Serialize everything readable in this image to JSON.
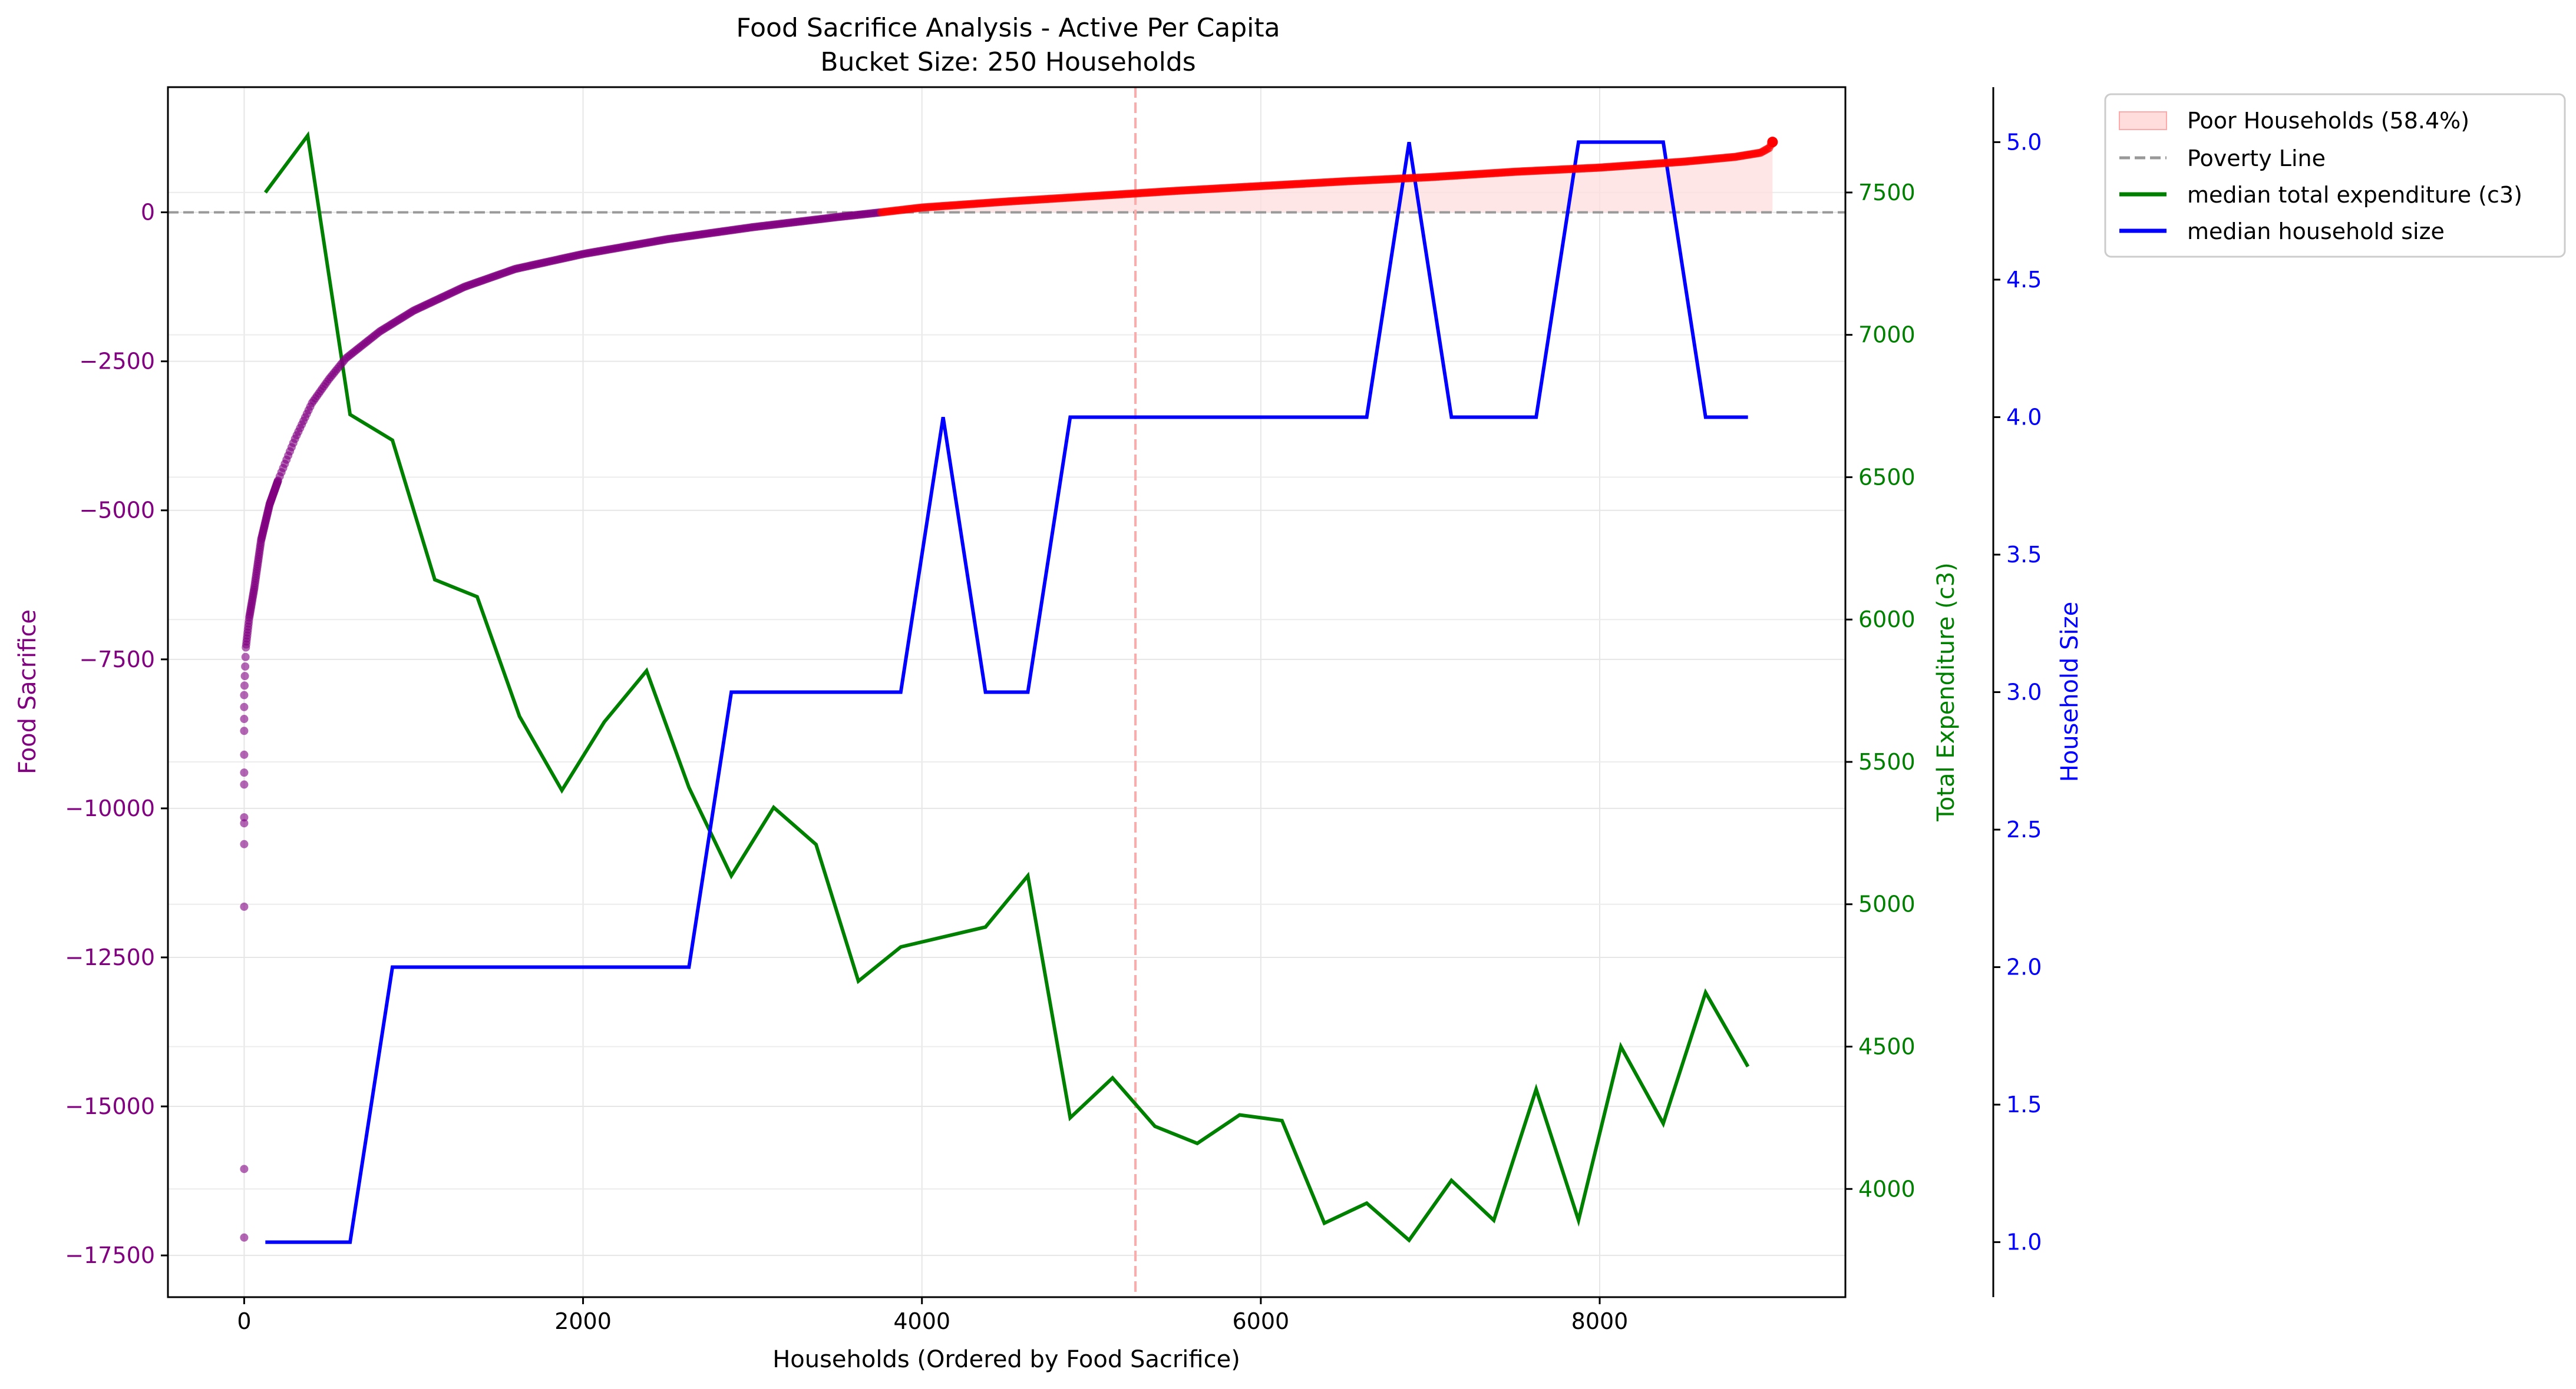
{
  "chart_data": {
    "type": "line",
    "title": "Food Sacrifice Analysis - Active Per Capita",
    "subtitle": "Bucket Size: 250 Households",
    "xlabel": "Households (Ordered by Food Sacrifice)",
    "xlim": [
      -450,
      9450
    ],
    "x_ticks": [
      0,
      2000,
      4000,
      6000,
      8000
    ],
    "x_tick_labels": [
      "0",
      "2000",
      "4000",
      "6000",
      "8000"
    ],
    "grid": true,
    "legend_position": "outside-top-right",
    "axes": {
      "left": {
        "label": "Food Sacrifice",
        "color": "#800080",
        "ylim": [
          -18200,
          2100
        ],
        "ticks": [
          0,
          -2500,
          -5000,
          -7500,
          -10000,
          -12500,
          -15000,
          -17500
        ],
        "tick_labels": [
          "0",
          "−2500",
          "−5000",
          "−7500",
          "−10000",
          "−12500",
          "−15000",
          "−17500"
        ]
      },
      "right1": {
        "label": "Total Expenditure (c3)",
        "color": "#008000",
        "ylim": [
          3620,
          7870
        ],
        "ticks": [
          4000,
          4500,
          5000,
          5500,
          6000,
          6500,
          7000,
          7500
        ],
        "tick_labels": [
          "4000",
          "4500",
          "5000",
          "5500",
          "6000",
          "6500",
          "7000",
          "7500"
        ]
      },
      "right2": {
        "label": "Household Size",
        "color": "#0000ff",
        "ylim": [
          0.8,
          5.2
        ],
        "ticks": [
          1.0,
          1.5,
          2.0,
          2.5,
          3.0,
          3.5,
          4.0,
          4.5,
          5.0
        ],
        "tick_labels": [
          "1.0",
          "1.5",
          "2.0",
          "2.5",
          "3.0",
          "3.5",
          "4.0",
          "4.5",
          "5.0"
        ]
      }
    },
    "reference_lines": {
      "poverty_line_y": 0,
      "vertical_x": 5260
    },
    "legend": [
      {
        "label": "Poor Households (58.4%)",
        "kind": "patch",
        "color": "#ffdddd",
        "edge": "#ffaaaa"
      },
      {
        "label": "Poverty Line",
        "kind": "dashed",
        "color": "#999999"
      },
      {
        "label": "median total expenditure (c3)",
        "kind": "line",
        "color": "#008000"
      },
      {
        "label": "median household size",
        "kind": "line",
        "color": "#0000ff"
      }
    ],
    "scatter_food_sacrifice": {
      "name": "Food Sacrifice",
      "color_negative": "#800080",
      "color_positive": "#ff0000",
      "isolated_points": [
        {
          "x": 0,
          "y": -17200
        },
        {
          "x": 0,
          "y": -16050
        },
        {
          "x": 0,
          "y": -11650
        },
        {
          "x": 0,
          "y": -10600
        },
        {
          "x": 0,
          "y": -10250
        },
        {
          "x": 0,
          "y": -10150
        },
        {
          "x": 0,
          "y": -9600
        },
        {
          "x": 0,
          "y": -9400
        },
        {
          "x": 0,
          "y": -9100
        },
        {
          "x": 0,
          "y": -8700
        },
        {
          "x": 0,
          "y": -8500
        },
        {
          "x": 0,
          "y": -8300
        }
      ],
      "curve": [
        {
          "x": 0,
          "y": -8100
        },
        {
          "x": 10,
          "y": -7300
        },
        {
          "x": 30,
          "y": -6800
        },
        {
          "x": 60,
          "y": -6300
        },
        {
          "x": 100,
          "y": -5500
        },
        {
          "x": 150,
          "y": -4900
        },
        {
          "x": 200,
          "y": -4500
        },
        {
          "x": 300,
          "y": -3800
        },
        {
          "x": 400,
          "y": -3200
        },
        {
          "x": 500,
          "y": -2800
        },
        {
          "x": 600,
          "y": -2450
        },
        {
          "x": 800,
          "y": -2000
        },
        {
          "x": 1000,
          "y": -1650
        },
        {
          "x": 1300,
          "y": -1250
        },
        {
          "x": 1600,
          "y": -950
        },
        {
          "x": 2000,
          "y": -700
        },
        {
          "x": 2500,
          "y": -450
        },
        {
          "x": 3000,
          "y": -250
        },
        {
          "x": 3500,
          "y": -80
        },
        {
          "x": 3760,
          "y": 0
        },
        {
          "x": 4000,
          "y": 80
        },
        {
          "x": 4500,
          "y": 180
        },
        {
          "x": 5000,
          "y": 270
        },
        {
          "x": 5500,
          "y": 360
        },
        {
          "x": 6000,
          "y": 440
        },
        {
          "x": 6500,
          "y": 520
        },
        {
          "x": 7000,
          "y": 590
        },
        {
          "x": 7500,
          "y": 680
        },
        {
          "x": 8000,
          "y": 750
        },
        {
          "x": 8500,
          "y": 850
        },
        {
          "x": 8800,
          "y": 930
        },
        {
          "x": 8950,
          "y": 1000
        },
        {
          "x": 9000,
          "y": 1080
        },
        {
          "x": 9020,
          "y": 1180
        }
      ]
    },
    "poor_fill_x_range": [
      3760,
      9020
    ],
    "series": [
      {
        "name": "median total expenditure (c3)",
        "axis": "right1",
        "color": "#008000",
        "x": [
          125,
          375,
          625,
          875,
          1125,
          1375,
          1625,
          1875,
          2125,
          2375,
          2625,
          2875,
          3125,
          3375,
          3625,
          3875,
          4375,
          4625,
          4875,
          5125,
          5375,
          5625,
          5875,
          6125,
          6375,
          6625,
          6875,
          7125,
          7375,
          7625,
          7875,
          8125,
          8375,
          8625,
          8875
        ],
        "values": [
          7500,
          7700,
          6720,
          6630,
          6140,
          6080,
          5660,
          5400,
          5640,
          5820,
          5410,
          5100,
          5340,
          5210,
          4730,
          4850,
          4920,
          5100,
          4250,
          4390,
          4220,
          4160,
          4260,
          4240,
          3880,
          3950,
          3820,
          4030,
          3890,
          4350,
          3890,
          4500,
          4230,
          4690,
          4430
        ]
      },
      {
        "name": "median household size",
        "axis": "right2",
        "color": "#0000ff",
        "x": [
          125,
          375,
          625,
          875,
          1125,
          1375,
          1625,
          1875,
          2125,
          2375,
          2625,
          2875,
          3125,
          3375,
          3625,
          3875,
          4125,
          4375,
          4625,
          4875,
          5125,
          5375,
          5625,
          5875,
          6125,
          6375,
          6625,
          6875,
          7125,
          7375,
          7625,
          7875,
          8125,
          8375,
          8625,
          8875
        ],
        "values": [
          1.0,
          1.0,
          1.0,
          2.0,
          2.0,
          2.0,
          2.0,
          2.0,
          2.0,
          2.0,
          2.0,
          3.0,
          3.0,
          3.0,
          3.0,
          3.0,
          4.0,
          3.0,
          3.0,
          4.0,
          4.0,
          4.0,
          4.0,
          4.0,
          4.0,
          4.0,
          4.0,
          5.0,
          4.0,
          4.0,
          4.0,
          5.0,
          5.0,
          5.0,
          4.0,
          4.0
        ]
      }
    ]
  }
}
